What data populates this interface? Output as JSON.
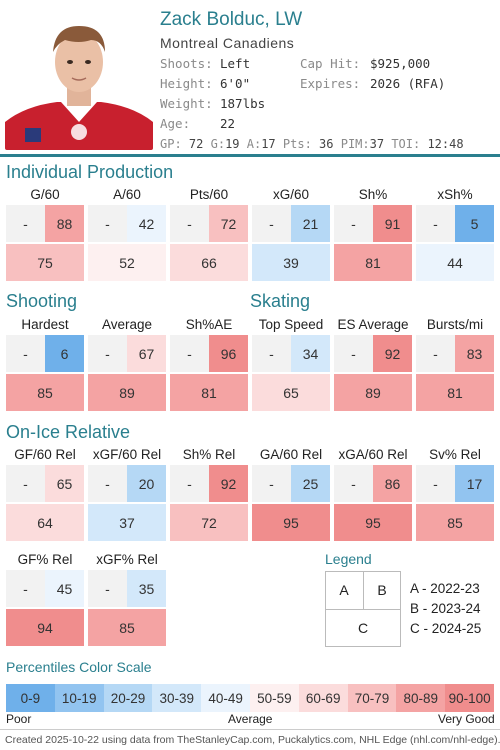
{
  "player": {
    "name": "Zack Bolduc, LW",
    "team": "Montreal Canadiens",
    "shoots_label": "Shoots:",
    "shoots": "Left",
    "height_label": "Height:",
    "height": "6'0\"",
    "weight_label": "Weight:",
    "weight": "187lbs",
    "age_label": "Age:",
    "age": "22",
    "caphit_label": "Cap Hit:",
    "caphit": "$925,000",
    "expires_label": "Expires:",
    "expires": "2026 (RFA)"
  },
  "season_stats": {
    "gp_label": "GP:",
    "gp": "72",
    "g_label": "G:",
    "g": "19",
    "a_label": "A:",
    "a": "17",
    "pts_label": "Pts:",
    "pts": "36",
    "pim_label": "PIM:",
    "pim": "37",
    "toi_label": "TOI:",
    "toi": "12:48"
  },
  "sections": {
    "individual": "Individual Production",
    "shooting": "Shooting",
    "skating": "Skating",
    "onice": "On-Ice Relative"
  },
  "metrics": {
    "g60": {
      "title": "G/60",
      "a": "-",
      "b": "88",
      "c": "75"
    },
    "a60": {
      "title": "A/60",
      "a": "-",
      "b": "42",
      "c": "52"
    },
    "pts60": {
      "title": "Pts/60",
      "a": "-",
      "b": "72",
      "c": "66"
    },
    "xg60": {
      "title": "xG/60",
      "a": "-",
      "b": "21",
      "c": "39"
    },
    "sh": {
      "title": "Sh%",
      "a": "-",
      "b": "91",
      "c": "81"
    },
    "xsh": {
      "title": "xSh%",
      "a": "-",
      "b": "5",
      "c": "44"
    },
    "hardest": {
      "title": "Hardest",
      "a": "-",
      "b": "6",
      "c": "85"
    },
    "average": {
      "title": "Average",
      "a": "-",
      "b": "67",
      "c": "89"
    },
    "shae": {
      "title": "Sh%AE",
      "a": "-",
      "b": "96",
      "c": "81"
    },
    "topspd": {
      "title": "Top Speed",
      "a": "-",
      "b": "34",
      "c": "65"
    },
    "esavg": {
      "title": "ES Average",
      "a": "-",
      "b": "92",
      "c": "89"
    },
    "bursts": {
      "title": "Bursts/mi",
      "a": "-",
      "b": "83",
      "c": "81"
    },
    "gf60": {
      "title": "GF/60 Rel",
      "a": "-",
      "b": "65",
      "c": "64"
    },
    "xgf60": {
      "title": "xGF/60 Rel",
      "a": "-",
      "b": "20",
      "c": "37"
    },
    "shrel": {
      "title": "Sh% Rel",
      "a": "-",
      "b": "92",
      "c": "72"
    },
    "ga60": {
      "title": "GA/60 Rel",
      "a": "-",
      "b": "25",
      "c": "95"
    },
    "xga60": {
      "title": "xGA/60 Rel",
      "a": "-",
      "b": "86",
      "c": "95"
    },
    "svrel": {
      "title": "Sv% Rel",
      "a": "-",
      "b": "17",
      "c": "85"
    },
    "gfpct": {
      "title": "GF% Rel",
      "a": "-",
      "b": "45",
      "c": "94"
    },
    "xgfpct": {
      "title": "xGF% Rel",
      "a": "-",
      "b": "35",
      "c": "85"
    }
  },
  "legend": {
    "title": "Legend",
    "a": "A",
    "b": "B",
    "c": "C",
    "a_desc": "A - 2022-23",
    "b_desc": "B - 2023-24",
    "c_desc": "C - 2024-25"
  },
  "scale": {
    "title": "Percentiles Color Scale",
    "bins": [
      "0-9",
      "10-19",
      "20-29",
      "30-39",
      "40-49",
      "50-59",
      "60-69",
      "70-79",
      "80-89",
      "90-100"
    ],
    "colors": [
      "#6fb0ea",
      "#92c4f0",
      "#b5d8f5",
      "#d3e8fa",
      "#ebf4fd",
      "#fdf0f0",
      "#fbdcdc",
      "#f8c0c0",
      "#f4a3a3",
      "#f08d8d"
    ],
    "poor": "Poor",
    "average": "Average",
    "very_good": "Very Good"
  },
  "footer": "Created 2025-10-22 using data from TheStanleyCap.com, Puckalytics.com, NHL Edge (nhl.com/nhl-edge)."
}
